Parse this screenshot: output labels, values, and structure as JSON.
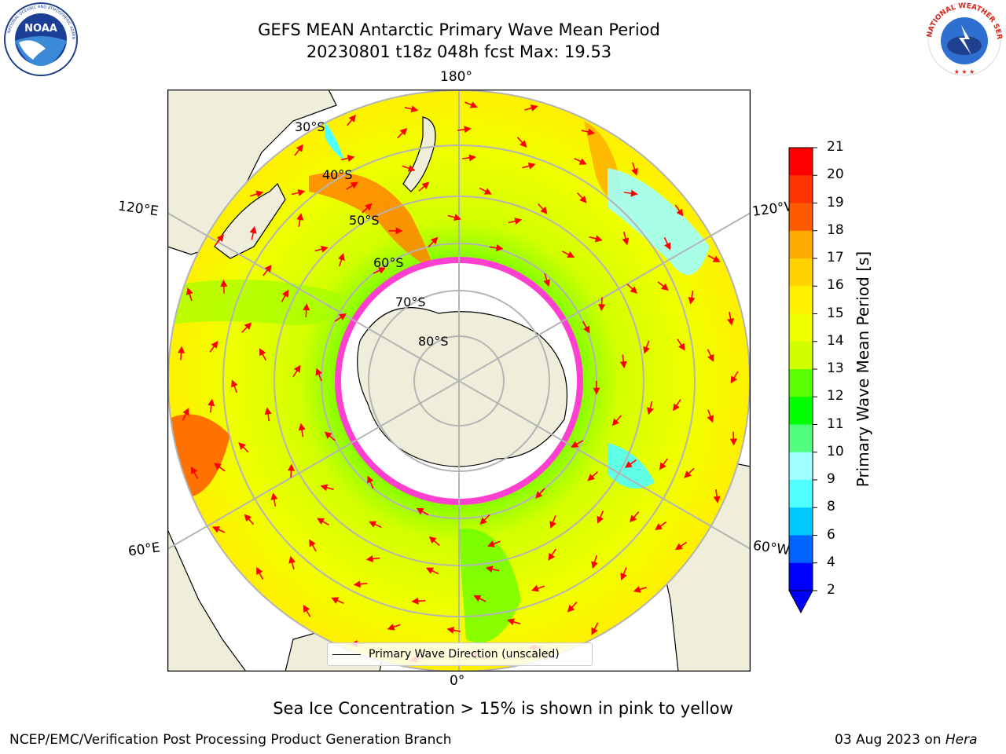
{
  "title": {
    "line1": "GEFS MEAN Antarctic Primary Wave Mean Period",
    "line2": "20230801 t18z 048h fcst   Max: 19.53"
  },
  "longitude_labels": {
    "top": "180°",
    "bottom": "0°",
    "left_upper": "120°E",
    "right_upper": "120°W",
    "left_lower": "60°E",
    "right_lower": "60°W"
  },
  "latitude_labels": [
    "30°S",
    "40°S",
    "50°S",
    "60°S",
    "70°S",
    "80°S"
  ],
  "legend": {
    "label": "Primary Wave Direction (unscaled)"
  },
  "colorbar": {
    "label": "Primary Wave Mean Period [s]",
    "ticks": [
      "21",
      "20",
      "19",
      "18",
      "17",
      "16",
      "15",
      "14",
      "13",
      "12",
      "11",
      "10",
      "9",
      "8",
      "6",
      "4",
      "2"
    ],
    "colors": [
      "#ff0000",
      "#ff3300",
      "#ff5a00",
      "#ff8200",
      "#ffaa00",
      "#ffd200",
      "#fff000",
      "#f0ff00",
      "#d2ff00",
      "#a0ff00",
      "#5aff00",
      "#00ff00",
      "#50ff80",
      "#a0ffff",
      "#50ffff",
      "#00ffff",
      "#00c8ff",
      "#0064ff",
      "#0000ff"
    ]
  },
  "map": {
    "colors": {
      "land": "#efeedb",
      "ice": "#ffffff",
      "ice_edge": "#ff3fd0",
      "arrows": "#ff0000",
      "grid": "#b4b4b4"
    }
  },
  "caption": "Sea Ice Concentration > 15% is shown in pink to yellow",
  "footer": {
    "left": "NCEP/EMC/Verification Post Processing Product Generation Branch",
    "right_date": "03 Aug 2023 on ",
    "right_host": "Hera"
  }
}
